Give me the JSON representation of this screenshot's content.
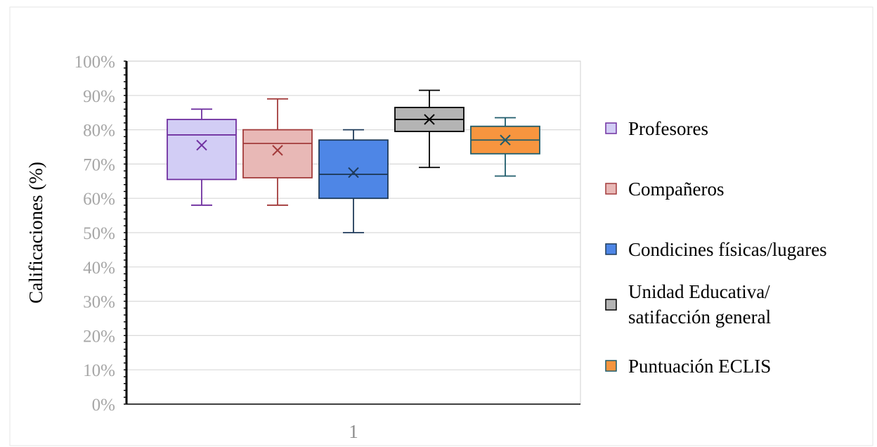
{
  "chart_data": {
    "type": "box",
    "title": "",
    "xlabel": "",
    "ylabel": "Calificaciones (%)",
    "categories": [
      "1"
    ],
    "ylim": [
      0,
      100
    ],
    "yticks": [
      0,
      10,
      20,
      30,
      40,
      50,
      60,
      70,
      80,
      90,
      100
    ],
    "ytick_labels": [
      "0%",
      "10%",
      "20%",
      "30%",
      "40%",
      "50%",
      "60%",
      "70%",
      "80%",
      "90%",
      "100%"
    ],
    "grid": true,
    "legend_position": "right",
    "series": [
      {
        "name": "Profesores",
        "min": 58,
        "q1": 65.5,
        "median": 78.5,
        "q3": 83,
        "max": 86,
        "mean": 75.5,
        "fill": "#d2cdf5",
        "stroke": "#7030a0"
      },
      {
        "name": "Compañeros",
        "min": 58,
        "q1": 66,
        "median": 76,
        "q3": 80,
        "max": 89,
        "mean": 74,
        "fill": "#e8b8b6",
        "stroke": "#a33b3b"
      },
      {
        "name": "Condicines físicas/lugares",
        "min": 50,
        "q1": 60,
        "median": 67,
        "q3": 77,
        "max": 80,
        "mean": 67.5,
        "fill": "#4e86e6",
        "stroke": "#1f3b5a"
      },
      {
        "name": "Unidad Educativa/ satifacción general",
        "label_lines": [
          "Unidad Educativa/",
          "satifacción general"
        ],
        "min": 69,
        "q1": 79.5,
        "median": 83,
        "q3": 86.5,
        "max": 91.5,
        "mean": 83,
        "fill": "#b4b4b4",
        "stroke": "#000000"
      },
      {
        "name": "Puntuación ECLIS",
        "min": 66.5,
        "q1": 73,
        "median": 77,
        "q3": 81,
        "max": 83.5,
        "mean": 77,
        "fill": "#f7953f",
        "stroke": "#1f5c6b"
      }
    ]
  }
}
